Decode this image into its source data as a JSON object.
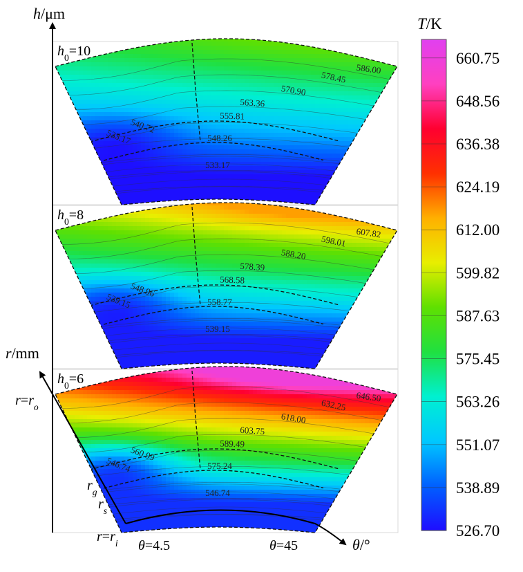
{
  "chart_data": {
    "type": "heatmap",
    "description_axes": {
      "h_axis_label_var": "h",
      "h_axis_label_unit": "/μm",
      "r_axis_label_var": "r",
      "r_axis_label_unit": "/mm",
      "theta_axis_label_var": "θ",
      "theta_axis_label_unit": "/°",
      "theta_ticks": [
        {
          "label_var": "θ",
          "label_val": "=4.5",
          "value": 4.5
        },
        {
          "label_var": "θ",
          "label_val": "=45",
          "value": 45
        }
      ],
      "r_ticks": [
        {
          "var": "r",
          "eq": "=",
          "sub_var": "r",
          "sub": "o"
        },
        {
          "var": "r",
          "sub": "g"
        },
        {
          "var": "r",
          "sub": "s"
        },
        {
          "var": "r",
          "eq": "=",
          "sub_var": "r",
          "sub": "i"
        }
      ]
    },
    "colorbar": {
      "title_var": "T",
      "title_unit": "/K",
      "ticks": [
        660.75,
        648.56,
        636.38,
        624.19,
        612.0,
        599.82,
        587.63,
        575.45,
        563.26,
        551.07,
        538.89,
        526.7
      ],
      "tick_labels": [
        "660.75",
        "648.56",
        "636.38",
        "624.19",
        "612.00",
        "599.82",
        "587.63",
        "575.45",
        "563.26",
        "551.07",
        "538.89",
        "526.70"
      ],
      "range": [
        526.7,
        666.0
      ],
      "colors": [
        "#1e0dff",
        "#0060ff",
        "#00c8ff",
        "#00f0d0",
        "#20e040",
        "#60e000",
        "#e8ee00",
        "#ffb000",
        "#ff3000",
        "#ff0030",
        "#ff40c0",
        "#e040f0"
      ]
    },
    "panels": [
      {
        "name_var": "h",
        "name_sub": "0",
        "name_val": "=10",
        "h0": 10,
        "contour_labels": [
          "586.00",
          "578.45",
          "570.90",
          "563.36",
          "555.81",
          "548.26",
          "540.72",
          "533.17",
          "533.17"
        ],
        "tmin": 527,
        "tmax": 590
      },
      {
        "name_var": "h",
        "name_sub": "0",
        "name_val": "=8",
        "h0": 8,
        "contour_labels": [
          "607.82",
          "598.01",
          "588.20",
          "578.39",
          "568.58",
          "558.77",
          "548.96",
          "539.15",
          "539.15"
        ],
        "tmin": 529,
        "tmax": 617
      },
      {
        "name_var": "h",
        "name_sub": "0",
        "name_val": "=6",
        "h0": 6,
        "contour_labels": [
          "646.50",
          "632.25",
          "618.00",
          "603.75",
          "589.49",
          "575.24",
          "560.99",
          "546.74",
          "546.74"
        ],
        "tmin": 532,
        "tmax": 660
      }
    ]
  }
}
